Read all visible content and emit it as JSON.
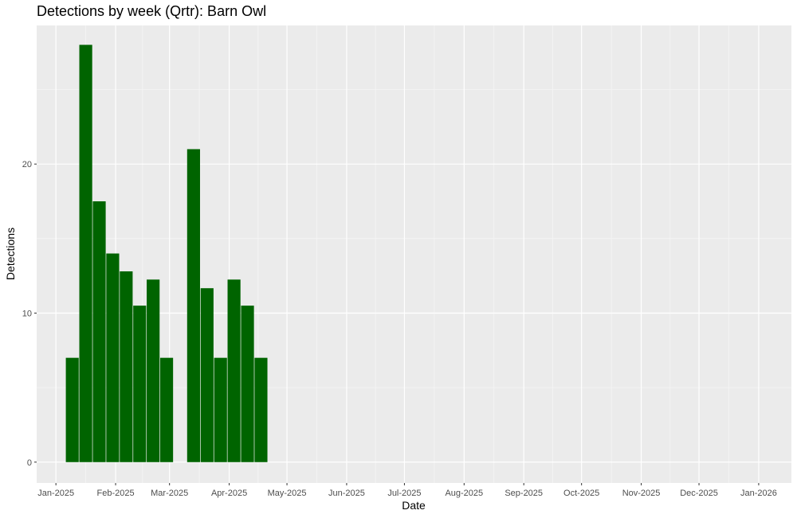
{
  "chart_data": {
    "type": "bar",
    "title": "Detections by week (Qrtr): Barn Owl",
    "xlabel": "Date",
    "ylabel": "Detections",
    "xlim": [
      "2024-12-22",
      "2026-01-18"
    ],
    "ylim": [
      -1.4,
      29.3
    ],
    "x_ticks": [
      {
        "date": "2025-01-01",
        "label": "Jan-2025"
      },
      {
        "date": "2025-02-01",
        "label": "Feb-2025"
      },
      {
        "date": "2025-03-01",
        "label": "Mar-2025"
      },
      {
        "date": "2025-04-01",
        "label": "Apr-2025"
      },
      {
        "date": "2025-05-01",
        "label": "May-2025"
      },
      {
        "date": "2025-06-01",
        "label": "Jun-2025"
      },
      {
        "date": "2025-07-01",
        "label": "Jul-2025"
      },
      {
        "date": "2025-08-01",
        "label": "Aug-2025"
      },
      {
        "date": "2025-09-01",
        "label": "Sep-2025"
      },
      {
        "date": "2025-10-01",
        "label": "Oct-2025"
      },
      {
        "date": "2025-11-01",
        "label": "Nov-2025"
      },
      {
        "date": "2025-12-01",
        "label": "Dec-2025"
      },
      {
        "date": "2026-01-01",
        "label": "Jan-2026"
      }
    ],
    "y_ticks": [
      0,
      10,
      20
    ],
    "bar_color": "#006400",
    "panel_color": "#ebebeb",
    "grid": true,
    "weeks": [
      {
        "week_start": "2025-01-06",
        "value": 7.0
      },
      {
        "week_start": "2025-01-13",
        "value": 28.0
      },
      {
        "week_start": "2025-01-20",
        "value": 17.5
      },
      {
        "week_start": "2025-01-27",
        "value": 14.0
      },
      {
        "week_start": "2025-02-03",
        "value": 12.8
      },
      {
        "week_start": "2025-02-10",
        "value": 10.5
      },
      {
        "week_start": "2025-02-17",
        "value": 12.25
      },
      {
        "week_start": "2025-02-24",
        "value": 7.0
      },
      {
        "week_start": "2025-03-10",
        "value": 21.0
      },
      {
        "week_start": "2025-03-17",
        "value": 11.67
      },
      {
        "week_start": "2025-03-24",
        "value": 7.0
      },
      {
        "week_start": "2025-03-31",
        "value": 12.25
      },
      {
        "week_start": "2025-04-07",
        "value": 10.5
      },
      {
        "week_start": "2025-04-14",
        "value": 7.0
      }
    ]
  }
}
